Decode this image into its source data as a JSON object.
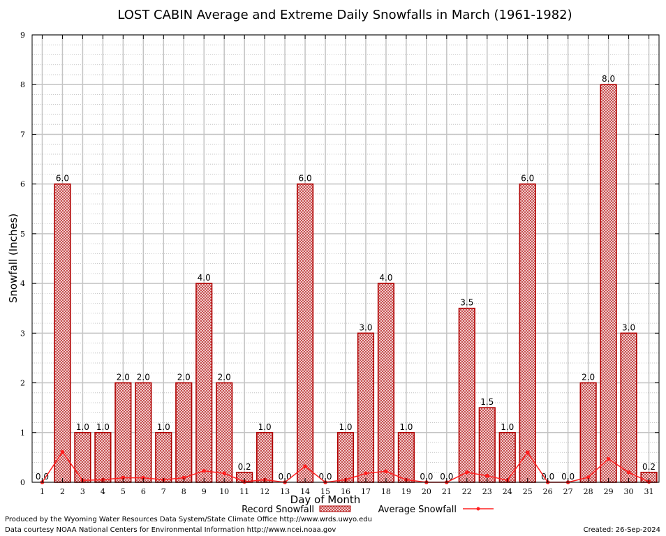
{
  "chart_data": {
    "type": "bar",
    "title": "LOST CABIN Average and Extreme Daily Snowfalls in March (1961-1982)",
    "xlabel": "Day of Month",
    "ylabel": "Snowfall (Inches)",
    "ylim": [
      0,
      9
    ],
    "yticks": [
      "0",
      "1",
      "2",
      "3",
      "4",
      "5",
      "6",
      "7",
      "8",
      "9"
    ],
    "categories": [
      "1",
      "2",
      "3",
      "4",
      "5",
      "6",
      "7",
      "8",
      "9",
      "10",
      "11",
      "12",
      "13",
      "14",
      "15",
      "16",
      "17",
      "18",
      "19",
      "20",
      "21",
      "22",
      "23",
      "24",
      "25",
      "26",
      "27",
      "28",
      "29",
      "30",
      "31"
    ],
    "series": [
      {
        "name": "Record Snowfall",
        "type": "bar",
        "color": "#b00000",
        "values": [
          0.0,
          6.0,
          1.0,
          1.0,
          2.0,
          2.0,
          1.0,
          2.0,
          4.0,
          2.0,
          0.2,
          1.0,
          0.0,
          6.0,
          0.0,
          1.0,
          3.0,
          4.0,
          1.0,
          0.0,
          0.0,
          3.5,
          1.5,
          1.0,
          6.0,
          0.0,
          0.0,
          2.0,
          8.0,
          3.0,
          0.2
        ],
        "labels": [
          "0.0",
          "6.0",
          "1.0",
          "1.0",
          "2.0",
          "2.0",
          "1.0",
          "2.0",
          "4.0",
          "2.0",
          "0.2",
          "1.0",
          "0.0",
          "6.0",
          "0.0",
          "1.0",
          "3.0",
          "4.0",
          "1.0",
          "0.0",
          "0.0",
          "3.5",
          "1.5",
          "1.0",
          "6.0",
          "0.0",
          "0.0",
          "2.0",
          "8.0",
          "3.0",
          "0.2"
        ]
      },
      {
        "name": "Average Snowfall",
        "type": "line",
        "color": "#ff2020",
        "values": [
          0.0,
          0.61,
          0.04,
          0.05,
          0.09,
          0.09,
          0.05,
          0.09,
          0.23,
          0.18,
          0.01,
          0.05,
          0.0,
          0.32,
          0.0,
          0.05,
          0.18,
          0.22,
          0.05,
          0.0,
          0.0,
          0.2,
          0.13,
          0.04,
          0.6,
          0.0,
          0.0,
          0.1,
          0.47,
          0.2,
          0.01
        ]
      }
    ],
    "legend": {
      "position": "bottom-center"
    }
  },
  "footer": {
    "produced_by": "Produced by the Wyoming Water Resources Data System/State Climate Office http://www.wrds.uwyo.edu",
    "data_courtesy": "Data courtesy NOAA National Centers for Environmental Information http://www.ncei.noaa.gov",
    "created": "Created:  26-Sep-2024"
  }
}
